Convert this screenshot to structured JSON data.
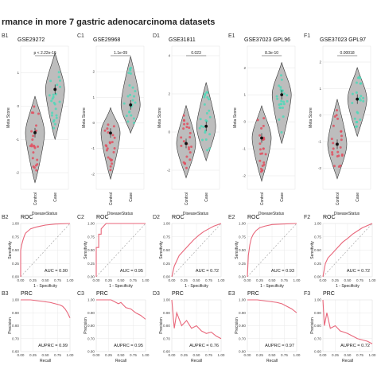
{
  "figure_title": "rmance in more 7 gastric adenocarcinoma datasets",
  "violin": {
    "y_label": "Meta Score",
    "x_label": "DiseaseStatus",
    "categories": [
      "Control",
      "Case"
    ],
    "panels": [
      {
        "label": "B1",
        "dataset": "GSE29272",
        "pvalue": "p < 2.22e-16"
      },
      {
        "label": "C1",
        "dataset": "GSE29968",
        "pvalue": "1.1e-09"
      },
      {
        "label": "D1",
        "dataset": "GSE31811",
        "pvalue": "0.023"
      },
      {
        "label": "E1",
        "dataset": "GSE37023 GPL96",
        "pvalue": "8.3e-10"
      },
      {
        "label": "F1",
        "dataset": "GSE37023 GPL97",
        "pvalue": "0.00018"
      }
    ]
  },
  "roc": {
    "title": "ROC",
    "x_label": "1 - Specificity",
    "y_label": "Sensitivity",
    "panels": [
      {
        "label": "B2",
        "auc": "AUC = 0.90"
      },
      {
        "label": "C2",
        "auc": "AUC = 0.95"
      },
      {
        "label": "D2",
        "auc": "AUC = 0.72"
      },
      {
        "label": "E2",
        "auc": "AUC = 0.93"
      },
      {
        "label": "F2",
        "auc": "AUC = 0.72"
      }
    ]
  },
  "prc": {
    "title": "PRC",
    "x_label": "Recall",
    "y_label": "Precision",
    "panels": [
      {
        "label": "B3",
        "auprc": "AUPRC = 0.99"
      },
      {
        "label": "C3",
        "auprc": "AUPRC = 0.95"
      },
      {
        "label": "D3",
        "auprc": "AUPRC = 0.76"
      },
      {
        "label": "E3",
        "auprc": "AUPRC = 0.97"
      },
      {
        "label": "F3",
        "auprc": "AUPRC = 0.72"
      }
    ]
  },
  "colors": {
    "control": "#e05060",
    "case": "#4fd8b8",
    "violin_fill": "#bdbdbd",
    "curve": "#e8667a",
    "panel_bg": "#ffffff",
    "grid": "#e4e4e4"
  },
  "chart_data": [
    {
      "type": "scatter",
      "dataset": "GSE29272",
      "ylabel": "Meta Score",
      "xlabel": "DiseaseStatus",
      "categories": [
        "Control",
        "Case"
      ],
      "yticks": [
        -2,
        -1,
        0,
        1
      ],
      "ylim": [
        -2.5,
        1.8
      ],
      "series": [
        {
          "name": "Control",
          "median": -0.8,
          "range": [
            -2.3,
            0.3
          ]
        },
        {
          "name": "Case",
          "median": 0.5,
          "range": [
            -1.0,
            1.6
          ]
        }
      ]
    },
    {
      "type": "scatter",
      "dataset": "GSE29968",
      "ylabel": "Meta Score",
      "xlabel": "DiseaseStatus",
      "categories": [
        "Control",
        "Case"
      ],
      "yticks": [
        -2,
        -1,
        0,
        1,
        2
      ],
      "ylim": [
        -2.6,
        3.0
      ],
      "series": [
        {
          "name": "Control",
          "median": -0.4,
          "range": [
            -2.2,
            0.6
          ]
        },
        {
          "name": "Case",
          "median": 0.7,
          "range": [
            -0.4,
            2.6
          ]
        }
      ]
    },
    {
      "type": "scatter",
      "dataset": "GSE31811",
      "ylabel": "Meta Score",
      "xlabel": "DiseaseStatus",
      "categories": [
        "Control",
        "Case"
      ],
      "yticks": [
        -2,
        0,
        2,
        4
      ],
      "ylim": [
        -3.0,
        4.5
      ],
      "series": [
        {
          "name": "Control",
          "median": -0.6,
          "range": [
            -2.4,
            1.4
          ]
        },
        {
          "name": "Case",
          "median": 0.3,
          "range": [
            -1.5,
            2.6
          ]
        }
      ]
    },
    {
      "type": "scatter",
      "dataset": "GSE37023 GPL96",
      "ylabel": "Meta Score",
      "xlabel": "DiseaseStatus",
      "categories": [
        "Control",
        "Case"
      ],
      "yticks": [
        -2,
        -1,
        0,
        1,
        2
      ],
      "ylim": [
        -2.5,
        2.8
      ],
      "series": [
        {
          "name": "Control",
          "median": -0.6,
          "range": [
            -2.2,
            0.6
          ]
        },
        {
          "name": "Case",
          "median": 1.0,
          "range": [
            -0.8,
            2.2
          ]
        }
      ]
    },
    {
      "type": "scatter",
      "dataset": "GSE37023 GPL97",
      "ylabel": "Meta Score",
      "xlabel": "DiseaseStatus",
      "categories": [
        "Control",
        "Case"
      ],
      "yticks": [
        -2,
        -1,
        0,
        1,
        2
      ],
      "ylim": [
        -2.8,
        2.6
      ],
      "series": [
        {
          "name": "Control",
          "median": -1.1,
          "range": [
            -2.4,
            0.6
          ]
        },
        {
          "name": "Case",
          "median": 0.6,
          "range": [
            -0.8,
            1.8
          ]
        }
      ]
    },
    {
      "type": "line",
      "title": "ROC",
      "panel": "B2",
      "xlabel": "1 - Specificity",
      "ylabel": "Sensitivity",
      "xlim": [
        0,
        1
      ],
      "ylim": [
        0,
        1
      ],
      "xticks": [
        0,
        0.25,
        0.5,
        0.75,
        1
      ],
      "x": [
        0,
        0,
        0.02,
        0.05,
        0.08,
        0.1,
        0.15,
        0.2,
        0.3,
        0.4,
        0.5,
        0.7,
        1
      ],
      "y": [
        0,
        0.5,
        0.6,
        0.7,
        0.78,
        0.82,
        0.86,
        0.9,
        0.93,
        0.95,
        0.97,
        0.99,
        1
      ]
    },
    {
      "type": "line",
      "title": "ROC",
      "panel": "C2",
      "xlabel": "1 - Specificity",
      "ylabel": "Sensitivity",
      "xlim": [
        0,
        1
      ],
      "ylim": [
        0,
        1
      ],
      "xticks": [
        0,
        0.25,
        0.5,
        0.75,
        1
      ],
      "x": [
        0,
        0,
        0.05,
        0.05,
        0.1,
        0.1,
        0.15,
        0.2,
        1
      ],
      "y": [
        0,
        0.55,
        0.55,
        0.8,
        0.8,
        0.9,
        0.95,
        1,
        1
      ]
    },
    {
      "type": "line",
      "title": "ROC",
      "panel": "D2",
      "xlabel": "1 - Specificity",
      "ylabel": "Sensitivity",
      "xlim": [
        0,
        1
      ],
      "ylim": [
        0,
        1
      ],
      "xticks": [
        0,
        0.25,
        0.5,
        0.75,
        1
      ],
      "x": [
        0,
        0.05,
        0.1,
        0.15,
        0.2,
        0.3,
        0.35,
        0.45,
        0.55,
        0.65,
        0.75,
        0.85,
        1
      ],
      "y": [
        0,
        0.2,
        0.3,
        0.4,
        0.45,
        0.55,
        0.6,
        0.7,
        0.78,
        0.85,
        0.9,
        0.95,
        1
      ]
    },
    {
      "type": "line",
      "title": "ROC",
      "panel": "E2",
      "xlabel": "1 - Specificity",
      "ylabel": "Sensitivity",
      "xlim": [
        0,
        1
      ],
      "ylim": [
        0,
        1
      ],
      "xticks": [
        0,
        0.25,
        0.5,
        0.75,
        1
      ],
      "x": [
        0,
        0.02,
        0.05,
        0.08,
        0.12,
        0.18,
        0.25,
        0.35,
        0.5,
        0.7,
        1
      ],
      "y": [
        0,
        0.4,
        0.6,
        0.72,
        0.8,
        0.87,
        0.92,
        0.95,
        0.98,
        0.99,
        1
      ]
    },
    {
      "type": "line",
      "title": "ROC",
      "panel": "F2",
      "xlabel": "1 - Specificity",
      "ylabel": "Sensitivity",
      "xlim": [
        0,
        1
      ],
      "ylim": [
        0,
        1
      ],
      "xticks": [
        0,
        0.25,
        0.5,
        0.75,
        1
      ],
      "x": [
        0,
        0.05,
        0.1,
        0.2,
        0.3,
        0.4,
        0.5,
        0.6,
        0.7,
        0.8,
        1
      ],
      "y": [
        0,
        0.25,
        0.35,
        0.45,
        0.55,
        0.65,
        0.72,
        0.8,
        0.86,
        0.92,
        1
      ]
    },
    {
      "type": "line",
      "title": "PRC",
      "panel": "B3",
      "xlabel": "Recall",
      "ylabel": "Precision",
      "xlim": [
        0,
        1
      ],
      "ylim": [
        0.6,
        1
      ],
      "xticks": [
        0,
        0.25,
        0.5,
        0.75,
        1
      ],
      "x": [
        0,
        0.2,
        0.4,
        0.6,
        0.7,
        0.8,
        0.85,
        0.9,
        0.95,
        1
      ],
      "y": [
        1,
        1,
        0.99,
        0.98,
        0.97,
        0.96,
        0.95,
        0.93,
        0.9,
        0.86
      ]
    },
    {
      "type": "line",
      "title": "PRC",
      "panel": "C3",
      "xlabel": "Recall",
      "ylabel": "Precision",
      "xlim": [
        0,
        1
      ],
      "ylim": [
        0.6,
        1
      ],
      "xticks": [
        0,
        0.25,
        0.5,
        0.75,
        1
      ],
      "x": [
        0,
        0.3,
        0.45,
        0.5,
        0.6,
        0.7,
        0.8,
        0.9,
        1
      ],
      "y": [
        1,
        1,
        0.97,
        0.98,
        0.94,
        0.93,
        0.9,
        0.88,
        0.85
      ]
    },
    {
      "type": "line",
      "title": "PRC",
      "panel": "D3",
      "xlabel": "Recall",
      "ylabel": "Precision",
      "xlim": [
        0,
        1
      ],
      "ylim": [
        0.6,
        1
      ],
      "xticks": [
        0,
        0.25,
        0.5,
        0.75,
        1
      ],
      "x": [
        0,
        0.05,
        0.1,
        0.2,
        0.3,
        0.4,
        0.5,
        0.6,
        0.7,
        0.8,
        0.9,
        1
      ],
      "y": [
        1,
        0.78,
        0.9,
        0.8,
        0.84,
        0.78,
        0.8,
        0.76,
        0.74,
        0.75,
        0.72,
        0.7
      ]
    },
    {
      "type": "line",
      "title": "PRC",
      "panel": "E3",
      "xlabel": "Recall",
      "ylabel": "Precision",
      "xlim": [
        0,
        1
      ],
      "ylim": [
        0.6,
        1
      ],
      "xticks": [
        0,
        0.25,
        0.5,
        0.75,
        1
      ],
      "x": [
        0,
        0.2,
        0.4,
        0.6,
        0.7,
        0.8,
        0.9,
        1
      ],
      "y": [
        1,
        1,
        0.99,
        0.98,
        0.97,
        0.95,
        0.93,
        0.9
      ]
    },
    {
      "type": "line",
      "title": "PRC",
      "panel": "F3",
      "xlabel": "Recall",
      "ylabel": "Precision",
      "xlim": [
        0,
        1
      ],
      "ylim": [
        0.6,
        1
      ],
      "xticks": [
        0,
        0.25,
        0.5,
        0.75,
        1
      ],
      "x": [
        0,
        0.03,
        0.08,
        0.15,
        0.25,
        0.35,
        0.5,
        0.6,
        0.7,
        0.8,
        0.9,
        1
      ],
      "y": [
        1,
        0.8,
        0.9,
        0.78,
        0.8,
        0.76,
        0.74,
        0.72,
        0.7,
        0.69,
        0.68,
        0.66
      ]
    }
  ]
}
